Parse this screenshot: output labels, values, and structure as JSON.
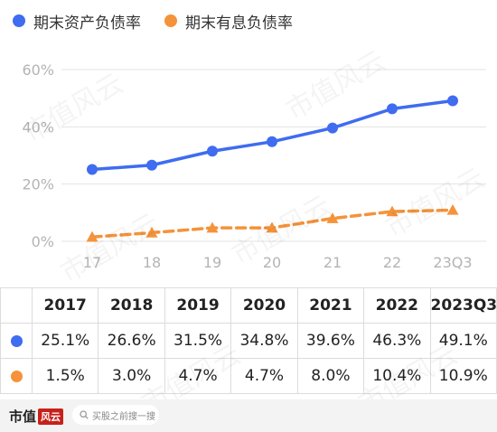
{
  "legend": [
    {
      "label": "期末资产负债率",
      "color": "#3f6cf0"
    },
    {
      "label": "期末有息负债率",
      "color": "#f4933a"
    }
  ],
  "chart_data": {
    "type": "line",
    "categories": [
      "17",
      "18",
      "19",
      "20",
      "21",
      "22",
      "23Q3"
    ],
    "series": [
      {
        "name": "期末资产负债率",
        "values": [
          25.1,
          26.6,
          31.5,
          34.8,
          39.6,
          46.3,
          49.1
        ],
        "color": "#3f6cf0",
        "marker": "circle",
        "line": "solid"
      },
      {
        "name": "期末有息负债率",
        "values": [
          1.5,
          3.0,
          4.7,
          4.7,
          8.0,
          10.4,
          10.9
        ],
        "color": "#f4933a",
        "marker": "triangle",
        "line": "dashed"
      }
    ],
    "y_ticks": [
      "60%",
      "40%",
      "20%",
      "0%"
    ],
    "y_tick_values": [
      60,
      40,
      20,
      0
    ],
    "ylim": [
      0,
      60
    ],
    "grid": true
  },
  "table": {
    "headers": [
      "2017",
      "2018",
      "2019",
      "2020",
      "2021",
      "2022",
      "2023Q3"
    ],
    "rows": [
      {
        "color": "#3f6cf0",
        "values": [
          "25.1%",
          "26.6%",
          "31.5%",
          "34.8%",
          "39.6%",
          "46.3%",
          "49.1%"
        ]
      },
      {
        "color": "#f4933a",
        "values": [
          "1.5%",
          "3.0%",
          "4.7%",
          "4.7%",
          "8.0%",
          "10.4%",
          "10.9%"
        ]
      }
    ]
  },
  "footer": {
    "brand": "市值",
    "brand_mark": "风云",
    "search_placeholder": "买股之前搜一搜",
    "search_icon": "search-icon"
  },
  "watermark": "市值风云"
}
